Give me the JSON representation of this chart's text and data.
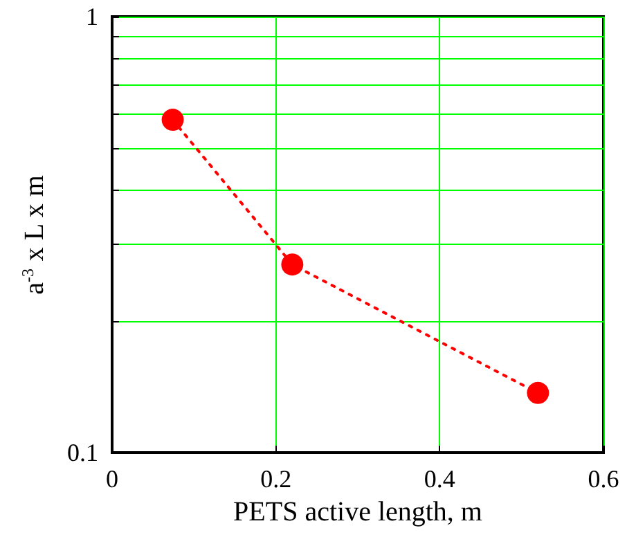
{
  "chart_data": {
    "type": "line",
    "xlabel": "PETS active length, m",
    "ylabel": "a$^{-3}$ x L x m",
    "x": [
      0.074,
      0.22,
      0.52
    ],
    "series": [
      {
        "color": "#ff0000",
        "values": [
          0.58,
          0.27,
          0.137
        ]
      }
    ],
    "xlim": [
      0,
      0.6
    ],
    "xticks": [
      0,
      0.2,
      0.4,
      0.6
    ],
    "ylim": [
      0.1,
      1
    ],
    "yticks": [
      0.1,
      {
        "value": 0.2,
        "label": null
      },
      {
        "value": 0.3,
        "label": null
      },
      {
        "value": 0.4,
        "label": null
      },
      {
        "value": 0.5,
        "label": null
      },
      {
        "value": 0.6,
        "label": null
      },
      {
        "value": 0.7,
        "label": null
      },
      {
        "value": 0.8,
        "label": null
      },
      {
        "value": 0.9,
        "label": null
      },
      1
    ],
    "log": true,
    "grid": true,
    "marker": "circle",
    "line_style": "dotted"
  }
}
